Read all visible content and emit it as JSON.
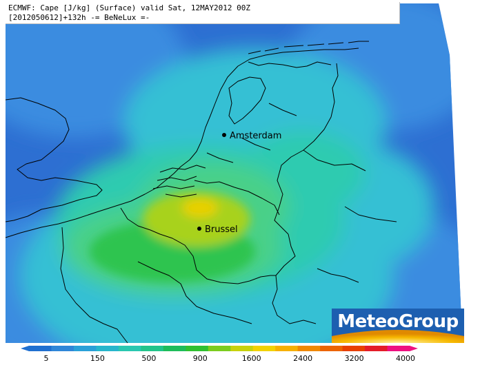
{
  "header": {
    "line1": "ECMWF: Cape [J/kg] (Surface) valid Sat, 12MAY2012 00Z",
    "line2": "[2012050612]+132h -= BeNeLux =-"
  },
  "cities": [
    {
      "name": "Amsterdam"
    },
    {
      "name": "Brussel"
    }
  ],
  "brand": {
    "name": "MeteoGroup"
  },
  "colorbar": {
    "ticks": [
      "5",
      "150",
      "500",
      "900",
      "1600",
      "2400",
      "3200",
      "4000"
    ],
    "colors": [
      "#1f6fd0",
      "#2f86d8",
      "#2aa0d8",
      "#27b6cc",
      "#2ac7b0",
      "#22c48a",
      "#1ebc5a",
      "#30c030",
      "#7ccc1e",
      "#c8d20c",
      "#f2d200",
      "#f6b000",
      "#f08800",
      "#ec6400",
      "#e84000",
      "#e41c28",
      "#ee1080"
    ]
  },
  "field_colors": {
    "deep_blue": "#2d6fd2",
    "blue": "#3a8ce0",
    "light_blue": "#3fa6e2",
    "cyan": "#34c0d4",
    "teal": "#2fcbb0",
    "green_light": "#48d088",
    "green": "#2ec450",
    "yellow_green": "#a8d21e",
    "yellow": "#e8d000"
  }
}
